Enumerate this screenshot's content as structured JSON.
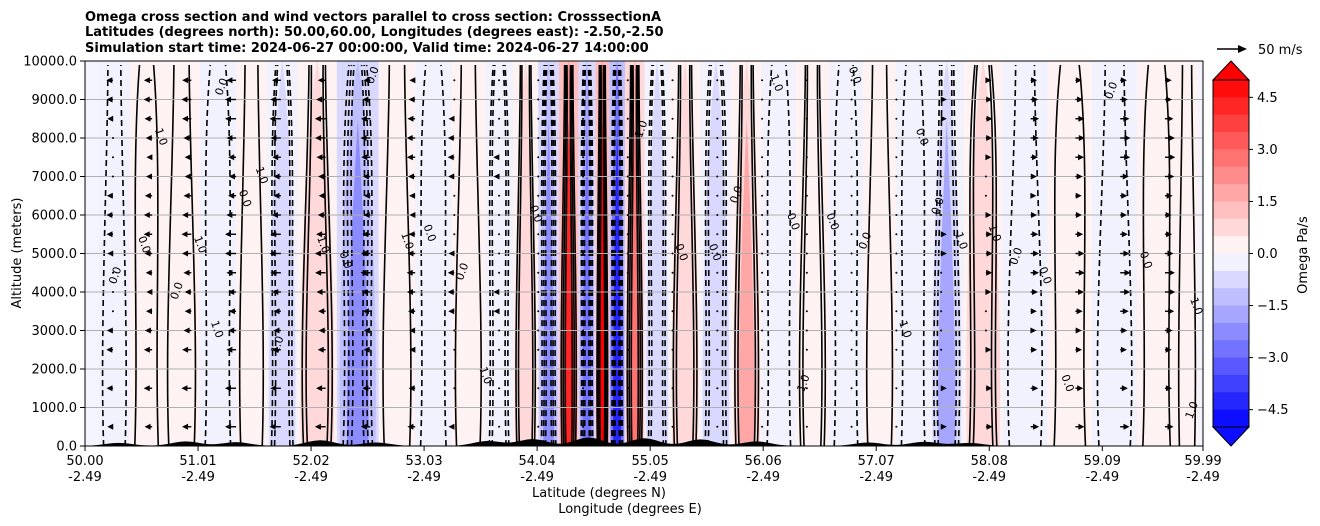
{
  "chart_data": {
    "type": "heatmap",
    "title_lines": [
      "Omega cross section and wind vectors parallel to cross section: CrosssectionA",
      "Latitudes (degrees north): 50.00,60.00, Longitudes (degrees east): -2.50,-2.50",
      "Simulation start time: 2024-06-27 00:00:00, Valid time: 2024-06-27 14:00:00"
    ],
    "xlabel_lines": [
      "Latitude (degrees N)",
      "Longitude (degrees E)"
    ],
    "ylabel": "Altitude (meters)",
    "x_ticks": [
      {
        "lat": "50.00",
        "lon": "-2.49"
      },
      {
        "lat": "51.01",
        "lon": "-2.49"
      },
      {
        "lat": "52.02",
        "lon": "-2.49"
      },
      {
        "lat": "53.03",
        "lon": "-2.49"
      },
      {
        "lat": "54.04",
        "lon": "-2.49"
      },
      {
        "lat": "55.05",
        "lon": "-2.49"
      },
      {
        "lat": "56.06",
        "lon": "-2.49"
      },
      {
        "lat": "57.07",
        "lon": "-2.49"
      },
      {
        "lat": "58.08",
        "lon": "-2.49"
      },
      {
        "lat": "59.09",
        "lon": "-2.49"
      },
      {
        "lat": "59.99",
        "lon": "-2.49"
      }
    ],
    "xlim": [
      50.0,
      59.99
    ],
    "y_ticks": [
      "0.0",
      "1000.0",
      "2000.0",
      "3000.0",
      "4000.0",
      "5000.0",
      "6000.0",
      "7000.0",
      "8000.0",
      "9000.0",
      "10000.0"
    ],
    "ylim": [
      0,
      10000
    ],
    "grid": "horizontal",
    "colorbar": {
      "label": "Omega Pa/s",
      "ticks": [
        "4.5",
        "3.0",
        "1.5",
        "0.0",
        "−1.5",
        "−3.0",
        "−4.5"
      ],
      "range": [
        -5.0,
        5.0
      ],
      "levels": 20,
      "extend": "both",
      "colormap": "bwr"
    },
    "quiver_key": {
      "label": "50 m/s",
      "speed": 50
    },
    "omega_bands": [
      {
        "lat": 50.25,
        "value": -0.3
      },
      {
        "lat": 50.55,
        "value": 0.6
      },
      {
        "lat": 50.85,
        "value": 0.5
      },
      {
        "lat": 51.2,
        "value": -0.5
      },
      {
        "lat": 51.5,
        "value": 0.4
      },
      {
        "lat": 51.75,
        "value": -1.0
      },
      {
        "lat": 52.05,
        "value": 1.0
      },
      {
        "lat": 52.45,
        "value": -2.2
      },
      {
        "lat": 52.8,
        "value": 0.7
      },
      {
        "lat": 53.1,
        "value": -0.4
      },
      {
        "lat": 53.45,
        "value": 0.6
      },
      {
        "lat": 53.7,
        "value": -0.8
      },
      {
        "lat": 53.95,
        "value": 1.2
      },
      {
        "lat": 54.15,
        "value": -2.5
      },
      {
        "lat": 54.32,
        "value": 4.0
      },
      {
        "lat": 54.5,
        "value": -2.8
      },
      {
        "lat": 54.62,
        "value": 5.0
      },
      {
        "lat": 54.75,
        "value": -4.5
      },
      {
        "lat": 54.9,
        "value": 2.5
      },
      {
        "lat": 55.1,
        "value": -1.0
      },
      {
        "lat": 55.35,
        "value": 1.2
      },
      {
        "lat": 55.65,
        "value": -0.9
      },
      {
        "lat": 55.9,
        "value": 1.5
      },
      {
        "lat": 56.2,
        "value": -0.6
      },
      {
        "lat": 56.5,
        "value": 0.8
      },
      {
        "lat": 56.8,
        "value": -0.7
      },
      {
        "lat": 57.1,
        "value": 0.5
      },
      {
        "lat": 57.4,
        "value": -0.4
      },
      {
        "lat": 57.7,
        "value": -1.6
      },
      {
        "lat": 58.0,
        "value": 0.9
      },
      {
        "lat": 58.4,
        "value": -0.3
      },
      {
        "lat": 58.8,
        "value": 0.2
      },
      {
        "lat": 59.2,
        "value": -0.3
      },
      {
        "lat": 59.6,
        "value": 0.2
      },
      {
        "lat": 59.9,
        "value": 0.1
      }
    ],
    "wind_columns": [
      {
        "lat": 50.25,
        "u": -8
      },
      {
        "lat": 50.6,
        "u": -12
      },
      {
        "lat": 50.95,
        "u": -15
      },
      {
        "lat": 51.35,
        "u": -18
      },
      {
        "lat": 51.75,
        "u": -18
      },
      {
        "lat": 52.15,
        "u": -17
      },
      {
        "lat": 52.55,
        "u": -15
      },
      {
        "lat": 52.95,
        "u": -12
      },
      {
        "lat": 53.3,
        "u": -8
      },
      {
        "lat": 53.7,
        "u": -6
      },
      {
        "lat": 54.05,
        "u": -4
      },
      {
        "lat": 54.45,
        "u": 2
      },
      {
        "lat": 54.85,
        "u": 3
      },
      {
        "lat": 55.25,
        "u": 2
      },
      {
        "lat": 55.65,
        "u": -2
      },
      {
        "lat": 56.05,
        "u": -3
      },
      {
        "lat": 56.45,
        "u": -2
      },
      {
        "lat": 56.85,
        "u": 2
      },
      {
        "lat": 57.25,
        "u": 4
      },
      {
        "lat": 57.65,
        "u": 6
      },
      {
        "lat": 58.05,
        "u": 8
      },
      {
        "lat": 58.45,
        "u": 12
      },
      {
        "lat": 58.85,
        "u": 14
      },
      {
        "lat": 59.25,
        "u": 16
      },
      {
        "lat": 59.65,
        "u": 16
      }
    ],
    "wind_levels_m": [
      500,
      1500,
      2500,
      3000,
      3500,
      4000,
      4500,
      5000,
      5500,
      6000,
      6500,
      7000,
      7500,
      8000,
      8500,
      9000,
      9500
    ],
    "contour_labels": [
      {
        "lat": 50.3,
        "alt": 4400,
        "text": "0.0"
      },
      {
        "lat": 50.5,
        "alt": 5200,
        "text": "0.0"
      },
      {
        "lat": 50.65,
        "alt": 8000,
        "text": "1.0"
      },
      {
        "lat": 50.85,
        "alt": 4000,
        "text": "0.0"
      },
      {
        "lat": 51.0,
        "alt": 5200,
        "text": "1.0"
      },
      {
        "lat": 51.15,
        "alt": 3000,
        "text": "1.0"
      },
      {
        "lat": 51.25,
        "alt": 9300,
        "text": "0.0"
      },
      {
        "lat": 51.4,
        "alt": 6400,
        "text": "0.0"
      },
      {
        "lat": 51.55,
        "alt": 7000,
        "text": "1.0"
      },
      {
        "lat": 51.75,
        "alt": 2600,
        "text": "1.0"
      },
      {
        "lat": 52.1,
        "alt": 5200,
        "text": "1.0"
      },
      {
        "lat": 52.3,
        "alt": 4800,
        "text": "0.0"
      },
      {
        "lat": 52.6,
        "alt": 9600,
        "text": "0.0"
      },
      {
        "lat": 52.85,
        "alt": 5300,
        "text": "1.0"
      },
      {
        "lat": 53.05,
        "alt": 5500,
        "text": "0.0"
      },
      {
        "lat": 53.4,
        "alt": 4500,
        "text": "0.0"
      },
      {
        "lat": 53.55,
        "alt": 1800,
        "text": "1.0"
      },
      {
        "lat": 54.0,
        "alt": 6000,
        "text": "0.0"
      },
      {
        "lat": 55.0,
        "alt": 8200,
        "text": "1.0"
      },
      {
        "lat": 55.3,
        "alt": 5000,
        "text": "0.0"
      },
      {
        "lat": 55.6,
        "alt": 5000,
        "text": "0.0"
      },
      {
        "lat": 55.85,
        "alt": 6500,
        "text": "0.0"
      },
      {
        "lat": 56.15,
        "alt": 9400,
        "text": "1.0"
      },
      {
        "lat": 56.3,
        "alt": 5800,
        "text": "0.0"
      },
      {
        "lat": 56.45,
        "alt": 1600,
        "text": "1.0"
      },
      {
        "lat": 56.65,
        "alt": 5800,
        "text": "0.0"
      },
      {
        "lat": 56.85,
        "alt": 9600,
        "text": "0.0"
      },
      {
        "lat": 57.0,
        "alt": 5300,
        "text": "0.0"
      },
      {
        "lat": 57.3,
        "alt": 3000,
        "text": "1.0"
      },
      {
        "lat": 57.45,
        "alt": 8000,
        "text": "0.0"
      },
      {
        "lat": 57.65,
        "alt": 6200,
        "text": "0.0"
      },
      {
        "lat": 57.8,
        "alt": 5300,
        "text": "1.0"
      },
      {
        "lat": 58.1,
        "alt": 5500,
        "text": "1.0"
      },
      {
        "lat": 58.35,
        "alt": 4900,
        "text": "0.0"
      },
      {
        "lat": 58.55,
        "alt": 4400,
        "text": "0.0"
      },
      {
        "lat": 58.75,
        "alt": 1600,
        "text": "0.0"
      },
      {
        "lat": 59.2,
        "alt": 9200,
        "text": "0.0"
      },
      {
        "lat": 59.45,
        "alt": 4800,
        "text": "0.0"
      },
      {
        "lat": 59.9,
        "alt": 3600,
        "text": "1.0"
      },
      {
        "lat": 59.92,
        "alt": 900,
        "text": "1.0"
      }
    ],
    "terrain_peaks": [
      {
        "lat": 50.3,
        "h": 80
      },
      {
        "lat": 50.9,
        "h": 120
      },
      {
        "lat": 51.35,
        "h": 100
      },
      {
        "lat": 52.1,
        "h": 150
      },
      {
        "lat": 52.6,
        "h": 90
      },
      {
        "lat": 53.6,
        "h": 130
      },
      {
        "lat": 54.0,
        "h": 180
      },
      {
        "lat": 54.5,
        "h": 220
      },
      {
        "lat": 55.0,
        "h": 200
      },
      {
        "lat": 55.5,
        "h": 170
      },
      {
        "lat": 56.0,
        "h": 120
      },
      {
        "lat": 57.0,
        "h": 90
      },
      {
        "lat": 57.5,
        "h": 110
      },
      {
        "lat": 57.9,
        "h": 80
      }
    ]
  }
}
